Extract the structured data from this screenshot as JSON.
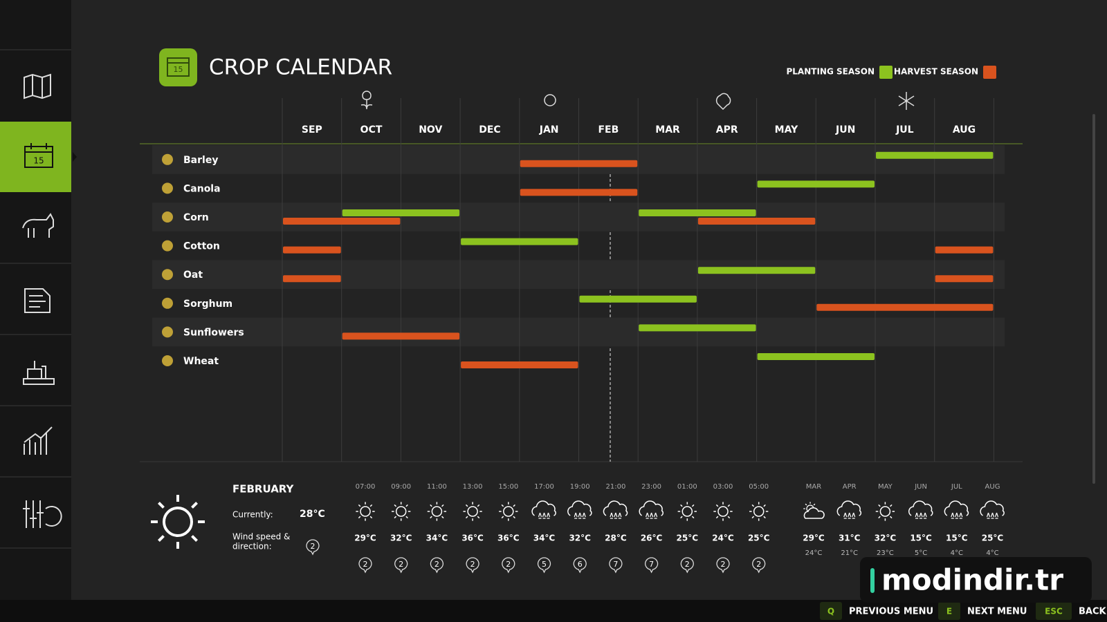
{
  "header": {
    "title": "CROP CALENDAR",
    "icon_text": "15"
  },
  "legend": [
    {
      "label": "PLANTING SEASON",
      "color": "#8cc21f"
    },
    {
      "label": "HARVEST SEASON",
      "color": "#d9531e"
    }
  ],
  "months": [
    "SEP",
    "OCT",
    "NOV",
    "DEC",
    "JAN",
    "FEB",
    "MAR",
    "APR",
    "MAY",
    "JUN",
    "JUL",
    "AUG"
  ],
  "crops": [
    {
      "name": "Barley",
      "planting": [
        [
          10,
          11
        ]
      ],
      "harvest": [
        [
          4,
          5
        ]
      ]
    },
    {
      "name": "Canola",
      "planting": [
        [
          8,
          9
        ]
      ],
      "harvest": [
        [
          4,
          5
        ]
      ]
    },
    {
      "name": "Corn",
      "planting": [
        [
          1,
          2
        ],
        [
          6,
          7
        ]
      ],
      "harvest": [
        [
          0,
          1
        ],
        [
          7,
          8
        ]
      ]
    },
    {
      "name": "Cotton",
      "planting": [
        [
          3,
          4
        ]
      ],
      "harvest": [
        [
          0,
          0
        ],
        [
          11,
          11
        ]
      ]
    },
    {
      "name": "Oat",
      "planting": [
        [
          7,
          8
        ]
      ],
      "harvest": [
        [
          0,
          0
        ],
        [
          11,
          11
        ]
      ]
    },
    {
      "name": "Sorghum",
      "planting": [
        [
          5,
          6
        ]
      ],
      "harvest": [
        [
          9,
          11
        ]
      ]
    },
    {
      "name": "Sunflowers",
      "planting": [
        [
          6,
          7
        ]
      ],
      "harvest": [
        [
          1,
          2
        ]
      ]
    },
    {
      "name": "Wheat",
      "planting": [
        [
          8,
          9
        ]
      ],
      "harvest": [
        [
          3,
          4
        ]
      ]
    }
  ],
  "weather": {
    "month": "FEBRUARY",
    "current_label": "Currently:",
    "current_temp": "28°C",
    "wind_label": [
      "Wind speed &",
      "direction:"
    ],
    "wind": 2,
    "hourly": [
      {
        "time": "07:00",
        "icon": "sun",
        "temp": "29°C",
        "wind": 2
      },
      {
        "time": "09:00",
        "icon": "sun",
        "temp": "32°C",
        "wind": 2
      },
      {
        "time": "11:00",
        "icon": "sun",
        "temp": "34°C",
        "wind": 2
      },
      {
        "time": "13:00",
        "icon": "sun",
        "temp": "36°C",
        "wind": 2
      },
      {
        "time": "15:00",
        "icon": "sun",
        "temp": "36°C",
        "wind": 2
      },
      {
        "time": "17:00",
        "icon": "rain",
        "temp": "34°C",
        "wind": 5
      },
      {
        "time": "19:00",
        "icon": "rain",
        "temp": "32°C",
        "wind": 6
      },
      {
        "time": "21:00",
        "icon": "rain",
        "temp": "28°C",
        "wind": 7
      },
      {
        "time": "23:00",
        "icon": "rain",
        "temp": "26°C",
        "wind": 7
      },
      {
        "time": "01:00",
        "icon": "sun",
        "temp": "25°C",
        "wind": 2
      },
      {
        "time": "03:00",
        "icon": "sun",
        "temp": "24°C",
        "wind": 2
      },
      {
        "time": "05:00",
        "icon": "sun",
        "temp": "25°C",
        "wind": 2
      }
    ],
    "monthly": [
      {
        "month": "MAR",
        "icon": "partly",
        "high": "29°C",
        "low": "24°C"
      },
      {
        "month": "APR",
        "icon": "rain",
        "high": "31°C",
        "low": "21°C"
      },
      {
        "month": "MAY",
        "icon": "sun",
        "high": "32°C",
        "low": "23°C"
      },
      {
        "month": "JUN",
        "icon": "rain",
        "high": "15°C",
        "low": "5°C"
      },
      {
        "month": "JUL",
        "icon": "rain",
        "high": "15°C",
        "low": "4°C"
      },
      {
        "month": "AUG",
        "icon": "rain",
        "high": "25°C",
        "low": "4°C"
      }
    ]
  },
  "footer": [
    {
      "key": "Q",
      "label": "PREVIOUS MENU"
    },
    {
      "key": "E",
      "label": "NEXT MENU"
    },
    {
      "key": "ESC",
      "label": "BACK"
    }
  ],
  "watermark": "modindir.tr"
}
